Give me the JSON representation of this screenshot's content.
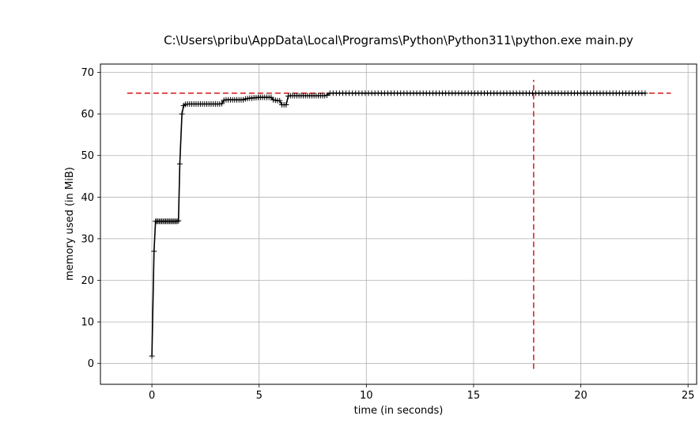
{
  "chart_data": {
    "type": "line",
    "title": "C:\\Users\\pribu\\AppData\\Local\\Programs\\Python\\Python311\\python.exe main.py",
    "xlabel": "time (in seconds)",
    "ylabel": "memory used (in MiB)",
    "xlim": [
      -2.4,
      25.4
    ],
    "ylim": [
      -5,
      72
    ],
    "xticks": [
      0,
      5,
      10,
      15,
      20,
      25
    ],
    "yticks": [
      0,
      10,
      20,
      30,
      40,
      50,
      60,
      70
    ],
    "grid": true,
    "series": [
      {
        "marker": "+",
        "color": "#000000",
        "points": [
          [
            0.0,
            1.8
          ],
          [
            0.1,
            27.0
          ],
          [
            0.17,
            34.2
          ],
          [
            0.22,
            34.2
          ],
          [
            0.28,
            34.2
          ],
          [
            0.34,
            34.2
          ],
          [
            0.4,
            34.2
          ],
          [
            0.46,
            34.2
          ],
          [
            0.52,
            34.2
          ],
          [
            0.58,
            34.2
          ],
          [
            0.64,
            34.2
          ],
          [
            0.7,
            34.2
          ],
          [
            0.76,
            34.2
          ],
          [
            0.82,
            34.2
          ],
          [
            0.88,
            34.2
          ],
          [
            0.94,
            34.2
          ],
          [
            1.0,
            34.2
          ],
          [
            1.06,
            34.2
          ],
          [
            1.12,
            34.2
          ],
          [
            1.18,
            34.2
          ],
          [
            1.24,
            34.3
          ],
          [
            1.3,
            48.0
          ],
          [
            1.4,
            60.0
          ],
          [
            1.48,
            62.0
          ],
          [
            1.56,
            62.3
          ],
          [
            1.66,
            62.4
          ],
          [
            1.76,
            62.4
          ],
          [
            1.86,
            62.4
          ],
          [
            1.96,
            62.4
          ],
          [
            2.06,
            62.4
          ],
          [
            2.16,
            62.4
          ],
          [
            2.26,
            62.4
          ],
          [
            2.36,
            62.4
          ],
          [
            2.46,
            62.4
          ],
          [
            2.56,
            62.4
          ],
          [
            2.66,
            62.4
          ],
          [
            2.76,
            62.4
          ],
          [
            2.86,
            62.4
          ],
          [
            2.96,
            62.4
          ],
          [
            3.06,
            62.4
          ],
          [
            3.16,
            62.4
          ],
          [
            3.26,
            62.5
          ],
          [
            3.36,
            63.3
          ],
          [
            3.46,
            63.4
          ],
          [
            3.56,
            63.4
          ],
          [
            3.66,
            63.4
          ],
          [
            3.76,
            63.4
          ],
          [
            3.86,
            63.4
          ],
          [
            3.96,
            63.4
          ],
          [
            4.06,
            63.4
          ],
          [
            4.16,
            63.4
          ],
          [
            4.26,
            63.4
          ],
          [
            4.36,
            63.6
          ],
          [
            4.46,
            63.7
          ],
          [
            4.56,
            63.8
          ],
          [
            4.66,
            63.8
          ],
          [
            4.76,
            63.9
          ],
          [
            4.86,
            63.9
          ],
          [
            4.96,
            64.0
          ],
          [
            5.06,
            64.0
          ],
          [
            5.16,
            64.0
          ],
          [
            5.26,
            64.0
          ],
          [
            5.36,
            64.0
          ],
          [
            5.46,
            64.0
          ],
          [
            5.56,
            64.0
          ],
          [
            5.66,
            63.4
          ],
          [
            5.76,
            63.3
          ],
          [
            5.86,
            63.2
          ],
          [
            5.96,
            63.2
          ],
          [
            6.06,
            62.2
          ],
          [
            6.16,
            62.2
          ],
          [
            6.26,
            62.2
          ],
          [
            6.36,
            64.3
          ],
          [
            6.46,
            64.4
          ],
          [
            6.56,
            64.4
          ],
          [
            6.66,
            64.4
          ],
          [
            6.76,
            64.4
          ],
          [
            6.86,
            64.4
          ],
          [
            6.96,
            64.4
          ],
          [
            7.06,
            64.4
          ],
          [
            7.16,
            64.4
          ],
          [
            7.26,
            64.4
          ],
          [
            7.36,
            64.4
          ],
          [
            7.46,
            64.4
          ],
          [
            7.56,
            64.4
          ],
          [
            7.66,
            64.4
          ],
          [
            7.76,
            64.4
          ],
          [
            7.86,
            64.4
          ],
          [
            7.96,
            64.4
          ],
          [
            8.06,
            64.4
          ],
          [
            8.16,
            64.5
          ],
          [
            8.3,
            65.0
          ],
          [
            8.45,
            65.0
          ],
          [
            8.6,
            65.0
          ],
          [
            8.75,
            65.0
          ],
          [
            8.9,
            65.0
          ],
          [
            9.05,
            65.0
          ],
          [
            9.2,
            65.0
          ],
          [
            9.35,
            65.0
          ],
          [
            9.5,
            65.0
          ],
          [
            9.65,
            65.0
          ],
          [
            9.8,
            65.0
          ],
          [
            9.95,
            65.0
          ],
          [
            10.1,
            65.0
          ],
          [
            10.25,
            65.0
          ],
          [
            10.4,
            65.0
          ],
          [
            10.55,
            65.0
          ],
          [
            10.7,
            65.0
          ],
          [
            10.85,
            65.0
          ],
          [
            11.0,
            65.0
          ],
          [
            11.15,
            65.0
          ],
          [
            11.3,
            65.0
          ],
          [
            11.45,
            65.0
          ],
          [
            11.6,
            65.0
          ],
          [
            11.75,
            65.0
          ],
          [
            11.9,
            65.0
          ],
          [
            12.05,
            65.0
          ],
          [
            12.2,
            65.0
          ],
          [
            12.35,
            65.0
          ],
          [
            12.5,
            65.0
          ],
          [
            12.65,
            65.0
          ],
          [
            12.8,
            65.0
          ],
          [
            12.95,
            65.0
          ],
          [
            13.1,
            65.0
          ],
          [
            13.25,
            65.0
          ],
          [
            13.4,
            65.0
          ],
          [
            13.55,
            65.0
          ],
          [
            13.7,
            65.0
          ],
          [
            13.85,
            65.0
          ],
          [
            14.0,
            65.0
          ],
          [
            14.15,
            65.0
          ],
          [
            14.3,
            65.0
          ],
          [
            14.45,
            65.0
          ],
          [
            14.6,
            65.0
          ],
          [
            14.75,
            65.0
          ],
          [
            14.9,
            65.0
          ],
          [
            15.05,
            65.0
          ],
          [
            15.2,
            65.0
          ],
          [
            15.35,
            65.0
          ],
          [
            15.5,
            65.0
          ],
          [
            15.65,
            65.0
          ],
          [
            15.8,
            65.0
          ],
          [
            15.95,
            65.0
          ],
          [
            16.1,
            65.0
          ],
          [
            16.25,
            65.0
          ],
          [
            16.4,
            65.0
          ],
          [
            16.55,
            65.0
          ],
          [
            16.7,
            65.0
          ],
          [
            16.85,
            65.0
          ],
          [
            17.0,
            65.0
          ],
          [
            17.15,
            65.0
          ],
          [
            17.3,
            65.0
          ],
          [
            17.45,
            65.0
          ],
          [
            17.6,
            65.0
          ],
          [
            17.75,
            65.0
          ],
          [
            17.9,
            65.0
          ],
          [
            18.05,
            65.0
          ],
          [
            18.2,
            65.0
          ],
          [
            18.35,
            65.0
          ],
          [
            18.5,
            65.0
          ],
          [
            18.65,
            65.0
          ],
          [
            18.8,
            65.0
          ],
          [
            18.95,
            65.0
          ],
          [
            19.1,
            65.0
          ],
          [
            19.25,
            65.0
          ],
          [
            19.4,
            65.0
          ],
          [
            19.55,
            65.0
          ],
          [
            19.7,
            65.0
          ],
          [
            19.85,
            65.0
          ],
          [
            20.0,
            65.0
          ],
          [
            20.15,
            65.0
          ],
          [
            20.3,
            65.0
          ],
          [
            20.45,
            65.0
          ],
          [
            20.6,
            65.0
          ],
          [
            20.75,
            65.0
          ],
          [
            20.9,
            65.0
          ],
          [
            21.05,
            65.0
          ],
          [
            21.2,
            65.0
          ],
          [
            21.35,
            65.0
          ],
          [
            21.5,
            65.0
          ],
          [
            21.65,
            65.0
          ],
          [
            21.8,
            65.0
          ],
          [
            21.95,
            65.0
          ],
          [
            22.1,
            65.0
          ],
          [
            22.25,
            65.0
          ],
          [
            22.4,
            65.0
          ],
          [
            22.55,
            65.0
          ],
          [
            22.7,
            65.0
          ],
          [
            22.85,
            65.0
          ],
          [
            23.0,
            65.0
          ]
        ]
      }
    ],
    "reference_lines": [
      {
        "orientation": "horizontal",
        "value": 65.0,
        "range": [
          -1.15,
          24.2
        ],
        "style": "dashed",
        "color": "#d62728"
      },
      {
        "orientation": "vertical",
        "value": 17.8,
        "range": [
          -1.3,
          68.2
        ],
        "style": "dashed",
        "color": "#d62728"
      }
    ]
  }
}
